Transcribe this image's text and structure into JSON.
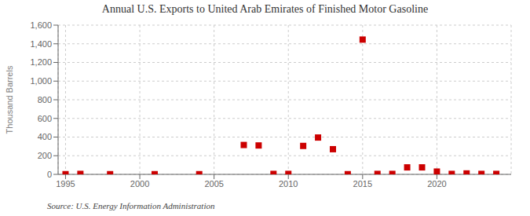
{
  "chart_data": {
    "type": "scatter",
    "title": "Annual U.S. Exports to United Arab Emirates of Finished Motor Gasoline",
    "ylabel": "Thousand Barrels",
    "annotations": [
      "Source: U.S. Energy Information Administration"
    ],
    "x": [
      1995,
      1996,
      1998,
      2001,
      2004,
      2007,
      2008,
      2009,
      2010,
      2011,
      2012,
      2013,
      2014,
      2015,
      2016,
      2017,
      2018,
      2019,
      2020,
      2021,
      2022,
      2023,
      2024
    ],
    "values": [
      2,
      5,
      2,
      2,
      2,
      315,
      310,
      5,
      5,
      305,
      395,
      270,
      2,
      1445,
      5,
      5,
      75,
      75,
      30,
      5,
      10,
      5,
      5
    ],
    "color": "#cc0000",
    "marker": "square",
    "xlim": [
      1994.5,
      2025
    ],
    "xticks": [
      1995,
      2000,
      2005,
      2010,
      2015,
      2020
    ],
    "ylim": [
      0,
      1600
    ],
    "yticks": [
      0,
      200,
      400,
      600,
      800,
      {
        "value": 1000,
        "label": "1,000"
      },
      {
        "value": 1200,
        "label": "1,200"
      },
      {
        "value": 1400,
        "label": "1,400"
      },
      {
        "value": 1600,
        "label": "1,600"
      }
    ],
    "grid": true
  }
}
